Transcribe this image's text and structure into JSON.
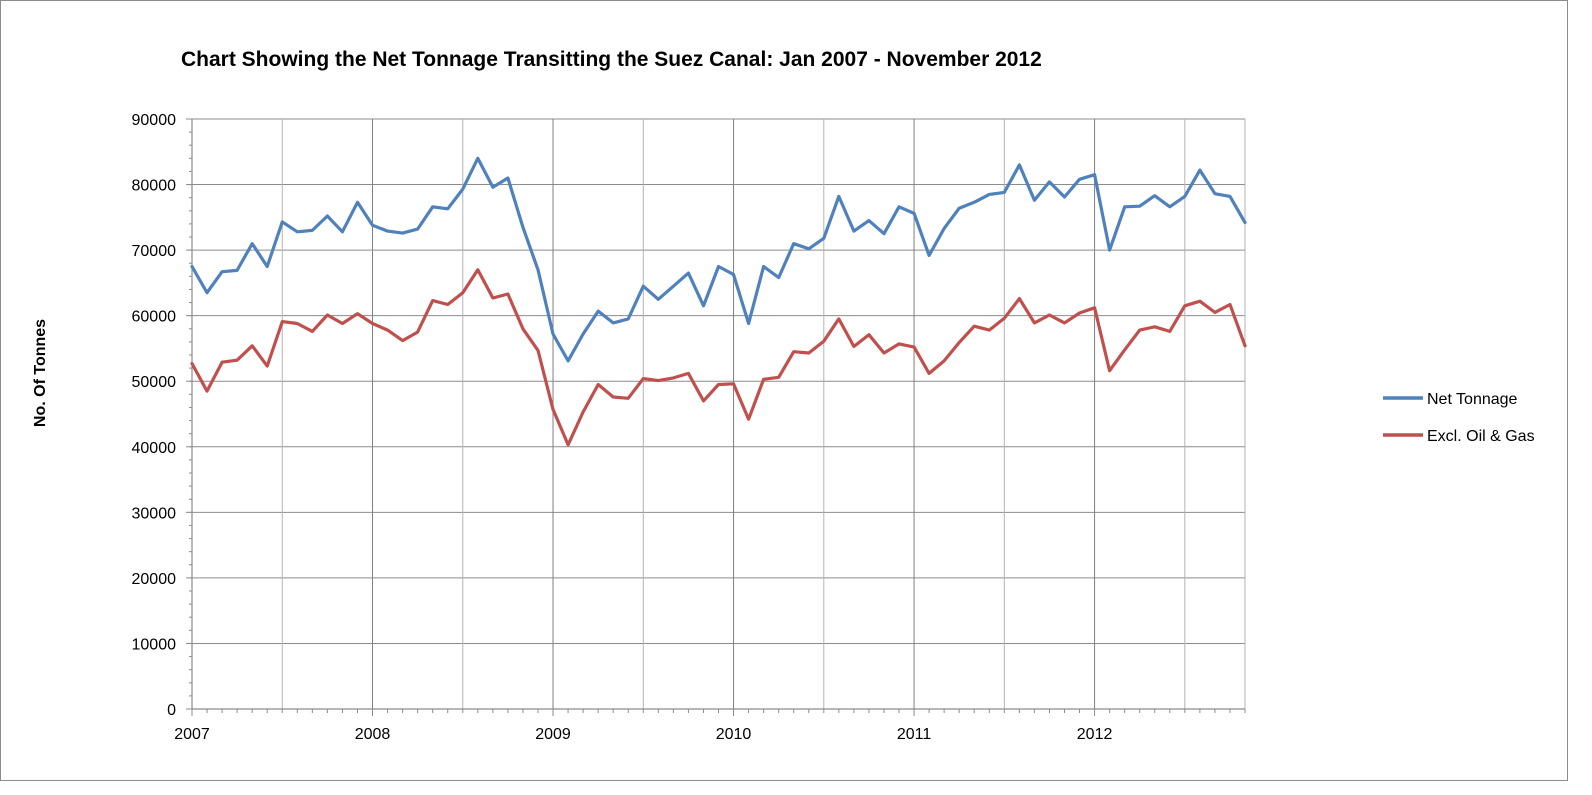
{
  "chart_data": {
    "type": "line",
    "title": "Chart Showing the Net Tonnage Transitting the Suez Canal: Jan 2007 - November 2012",
    "ylabel": "No. Of Tonnes",
    "xlabel": "",
    "ylim": [
      0,
      90000
    ],
    "yticks": [
      "0",
      "10000",
      "20000",
      "30000",
      "40000",
      "50000",
      "60000",
      "70000",
      "80000",
      "90000"
    ],
    "xticks": [
      "2007",
      "2008",
      "2009",
      "2010",
      "2011",
      "2012"
    ],
    "x_start": "2007-01",
    "x_end": "2012-11",
    "grid": true,
    "legend_position": "right",
    "series": [
      {
        "name": "Net Tonnage",
        "color": "#4f81bd",
        "values": [
          67500,
          63500,
          66700,
          66900,
          71000,
          67500,
          74300,
          72800,
          73000,
          75200,
          72800,
          77300,
          73800,
          72900,
          72600,
          73200,
          76600,
          76300,
          79300,
          84000,
          79600,
          81000,
          73500,
          67000,
          57200,
          53100,
          57200,
          60700,
          58900,
          59500,
          64500,
          62500,
          64500,
          66500,
          61500,
          67500,
          66300,
          58800,
          67500,
          65800,
          71000,
          70200,
          71800,
          78200,
          72900,
          74500,
          72500,
          76600,
          75600,
          69200,
          73300,
          76400,
          77300,
          78500,
          78800,
          83000,
          77600,
          80400,
          78100,
          80800,
          81500,
          70000,
          76600,
          76700,
          78300,
          76600,
          78200,
          82200,
          78600,
          78200,
          74200
        ]
      },
      {
        "name": "Excl. Oil & Gas",
        "color": "#c0504d",
        "values": [
          52700,
          48500,
          52900,
          53200,
          55400,
          52300,
          59100,
          58800,
          57600,
          60100,
          58800,
          60300,
          58800,
          57800,
          56200,
          57500,
          62300,
          61700,
          63500,
          67000,
          62700,
          63300,
          58000,
          54700,
          45700,
          40300,
          45300,
          49500,
          47600,
          47400,
          50400,
          50100,
          50500,
          51200,
          47000,
          49500,
          49600,
          44200,
          50300,
          50600,
          54500,
          54300,
          56100,
          59500,
          55300,
          57100,
          54300,
          55700,
          55200,
          51200,
          53100,
          55900,
          58400,
          57800,
          59600,
          62600,
          58900,
          60100,
          58900,
          60400,
          61200,
          51600,
          54800,
          57800,
          58300,
          57600,
          61500,
          62200,
          60500,
          61700,
          55400
        ]
      }
    ]
  }
}
